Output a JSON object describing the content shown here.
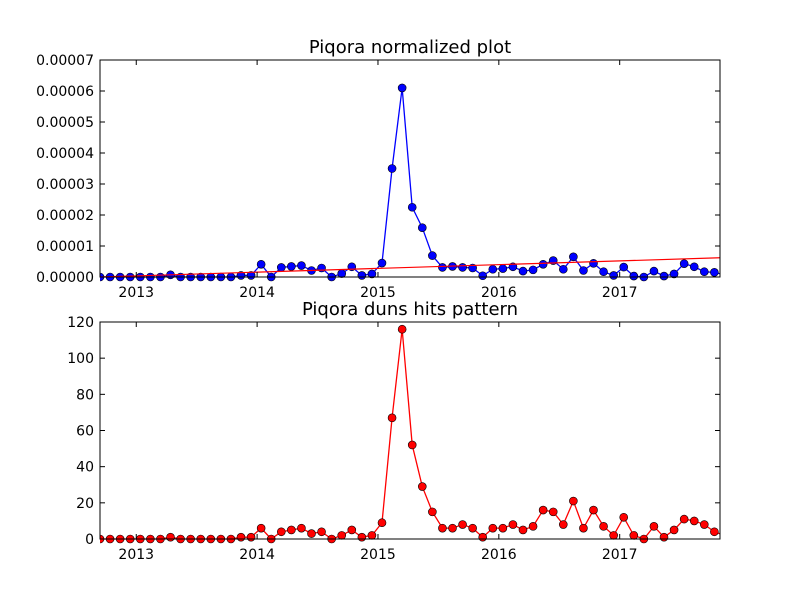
{
  "chart_data": [
    {
      "type": "line",
      "title": "Piqora normalized plot",
      "xlabel": "",
      "ylabel": "",
      "xlim": [
        2012.7,
        2017.83
      ],
      "ylim": [
        0,
        7e-05
      ],
      "x_ticks": [
        {
          "value": 2013,
          "label": "2013"
        },
        {
          "value": 2014,
          "label": "2014"
        },
        {
          "value": 2015,
          "label": "2015"
        },
        {
          "value": 2016,
          "label": "2016"
        },
        {
          "value": 2017,
          "label": "2017"
        }
      ],
      "y_ticks": [
        {
          "value": 0,
          "label": "0.00000"
        },
        {
          "value": 1e-05,
          "label": "0.00001"
        },
        {
          "value": 2e-05,
          "label": "0.00002"
        },
        {
          "value": 3e-05,
          "label": "0.00003"
        },
        {
          "value": 4e-05,
          "label": "0.00004"
        },
        {
          "value": 5e-05,
          "label": "0.00005"
        },
        {
          "value": 6e-05,
          "label": "0.00006"
        },
        {
          "value": 7e-05,
          "label": "0.00007"
        }
      ],
      "series": [
        {
          "color": "#0000ff",
          "marker_color": "#0000ff",
          "values": [
            0,
            0,
            0,
            0,
            0,
            0,
            0,
            7e-07,
            0,
            0,
            0,
            0,
            0,
            0,
            5e-07,
            5e-07,
            4.1e-06,
            0,
            3.1e-06,
            3.4e-06,
            3.7e-06,
            2.1e-06,
            2.9e-06,
            0,
            1.1e-06,
            3.3e-06,
            5e-07,
            1e-06,
            4.5e-06,
            3.5e-05,
            6.1e-05,
            2.25e-05,
            1.59e-05,
            6.9e-06,
            3.1e-06,
            3.4e-06,
            3.1e-06,
            2.9e-06,
            4e-07,
            2.5e-06,
            2.7e-06,
            3.3e-06,
            1.9e-06,
            2.3e-06,
            4.1e-06,
            5.3e-06,
            2.5e-06,
            6.5e-06,
            2.1e-06,
            4.4e-06,
            1.7e-06,
            5e-07,
            3.2e-06,
            3e-07,
            0,
            1.9e-06,
            3e-07,
            1e-06,
            4.3e-06,
            3.3e-06,
            1.7e-06,
            1.5e-06,
            7e-07
          ]
        },
        {
          "color": "#ff0000",
          "trendline": true,
          "x": [
            2012.7,
            2017.83
          ],
          "values": [
            0,
            6.2e-06
          ]
        }
      ]
    },
    {
      "type": "line",
      "title": "Piqora duns hits pattern",
      "xlabel": "",
      "ylabel": "",
      "xlim": [
        2012.7,
        2017.83
      ],
      "ylim": [
        0,
        120
      ],
      "x_ticks": [
        {
          "value": 2013,
          "label": "2013"
        },
        {
          "value": 2014,
          "label": "2014"
        },
        {
          "value": 2015,
          "label": "2015"
        },
        {
          "value": 2016,
          "label": "2016"
        },
        {
          "value": 2017,
          "label": "2017"
        }
      ],
      "y_ticks": [
        {
          "value": 0,
          "label": "0"
        },
        {
          "value": 20,
          "label": "20"
        },
        {
          "value": 40,
          "label": "40"
        },
        {
          "value": 60,
          "label": "60"
        },
        {
          "value": 80,
          "label": "80"
        },
        {
          "value": 100,
          "label": "100"
        },
        {
          "value": 120,
          "label": "120"
        }
      ],
      "series": [
        {
          "color": "#ff0000",
          "marker_color": "#ff0000",
          "values": [
            0,
            0,
            0,
            0,
            0,
            0,
            0,
            1,
            0,
            0,
            0,
            0,
            0,
            0,
            1,
            1,
            6,
            0,
            4,
            5,
            6,
            3,
            4,
            0,
            2,
            5,
            1,
            2,
            9,
            67,
            116,
            52,
            29,
            15,
            6,
            6,
            8,
            6,
            1,
            6,
            6,
            8,
            5,
            7,
            16,
            15,
            8,
            21,
            6,
            16,
            7,
            2,
            12,
            2,
            0,
            7,
            1,
            5,
            11,
            10,
            8,
            4,
            2
          ]
        }
      ]
    }
  ]
}
